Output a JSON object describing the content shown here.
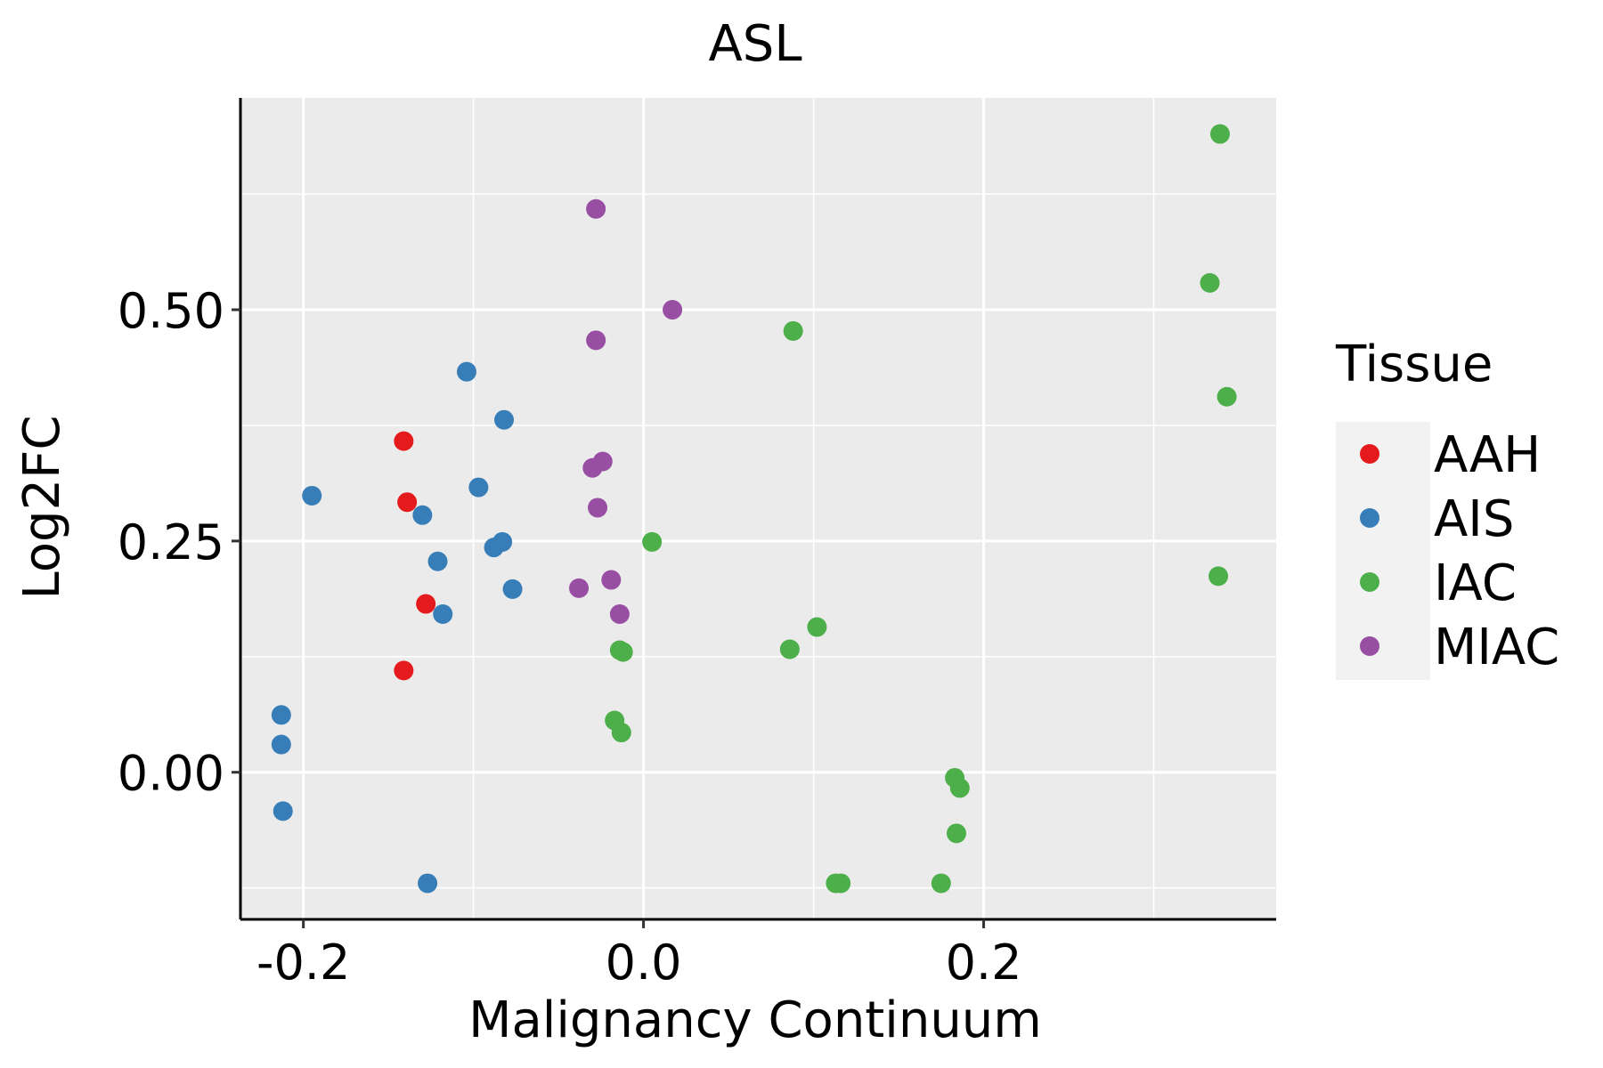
{
  "chart_data": {
    "type": "scatter",
    "title": "ASL",
    "xlabel": "Malignancy Continuum",
    "ylabel": "Log2FC",
    "xlim": [
      -0.237,
      0.372
    ],
    "ylim": [
      -0.159,
      0.729
    ],
    "x_ticks": [
      -0.2,
      0.0,
      0.2
    ],
    "x_tick_labels": [
      "-0.2",
      "0.0",
      "0.2"
    ],
    "y_ticks": [
      0.0,
      0.25,
      0.5
    ],
    "y_tick_labels": [
      "0.00",
      "0.25",
      "0.50"
    ],
    "grid": true,
    "legend": {
      "title": "Tissue",
      "placement": "right",
      "entries": [
        "AAH",
        "AIS",
        "IAC",
        "MIAC"
      ]
    },
    "colors": {
      "AAH": "#E41A1C",
      "AIS": "#377EB8",
      "IAC": "#4DAF4A",
      "MIAC": "#984EA3",
      "panel": "#EBEBEB",
      "grid": "#FFFFFF"
    },
    "series": [
      {
        "name": "AAH",
        "points": [
          {
            "x": -0.141,
            "y": 0.358
          },
          {
            "x": -0.139,
            "y": 0.292
          },
          {
            "x": -0.128,
            "y": 0.182
          },
          {
            "x": -0.141,
            "y": 0.11
          }
        ]
      },
      {
        "name": "AIS",
        "points": [
          {
            "x": -0.104,
            "y": 0.433
          },
          {
            "x": -0.082,
            "y": 0.381
          },
          {
            "x": -0.097,
            "y": 0.308
          },
          {
            "x": -0.195,
            "y": 0.299
          },
          {
            "x": -0.13,
            "y": 0.278
          },
          {
            "x": -0.083,
            "y": 0.249
          },
          {
            "x": -0.088,
            "y": 0.243
          },
          {
            "x": -0.121,
            "y": 0.228
          },
          {
            "x": -0.077,
            "y": 0.198
          },
          {
            "x": -0.118,
            "y": 0.171
          },
          {
            "x": -0.213,
            "y": 0.062
          },
          {
            "x": -0.213,
            "y": 0.03
          },
          {
            "x": -0.212,
            "y": -0.042
          },
          {
            "x": -0.127,
            "y": -0.12
          }
        ]
      },
      {
        "name": "IAC",
        "points": [
          {
            "x": 0.339,
            "y": 0.69
          },
          {
            "x": 0.333,
            "y": 0.529
          },
          {
            "x": 0.343,
            "y": 0.406
          },
          {
            "x": 0.088,
            "y": 0.477
          },
          {
            "x": 0.005,
            "y": 0.249
          },
          {
            "x": 0.338,
            "y": 0.212
          },
          {
            "x": 0.102,
            "y": 0.157
          },
          {
            "x": 0.086,
            "y": 0.133
          },
          {
            "x": -0.014,
            "y": 0.132
          },
          {
            "x": -0.012,
            "y": 0.13
          },
          {
            "x": -0.017,
            "y": 0.056
          },
          {
            "x": -0.013,
            "y": 0.043
          },
          {
            "x": 0.183,
            "y": -0.006
          },
          {
            "x": 0.186,
            "y": -0.017
          },
          {
            "x": 0.184,
            "y": -0.066
          },
          {
            "x": 0.113,
            "y": -0.12
          },
          {
            "x": 0.116,
            "y": -0.12
          },
          {
            "x": 0.175,
            "y": -0.12
          }
        ]
      },
      {
        "name": "MIAC",
        "points": [
          {
            "x": -0.028,
            "y": 0.609
          },
          {
            "x": 0.017,
            "y": 0.5
          },
          {
            "x": -0.028,
            "y": 0.467
          },
          {
            "x": -0.024,
            "y": 0.336
          },
          {
            "x": -0.03,
            "y": 0.329
          },
          {
            "x": -0.027,
            "y": 0.286
          },
          {
            "x": -0.019,
            "y": 0.208
          },
          {
            "x": -0.038,
            "y": 0.199
          },
          {
            "x": -0.014,
            "y": 0.171
          }
        ]
      }
    ]
  }
}
